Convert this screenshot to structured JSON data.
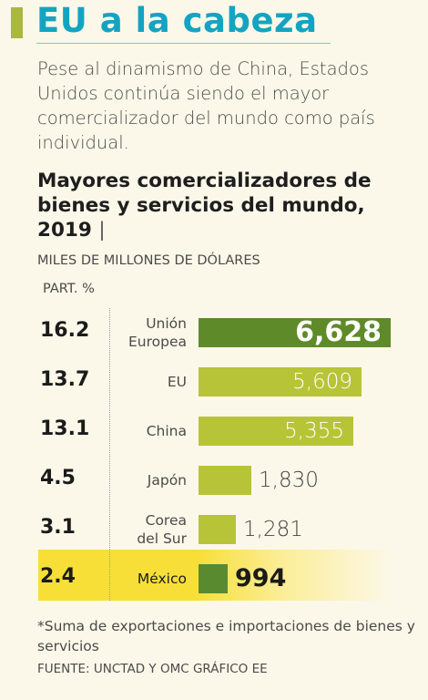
{
  "header": {
    "title": "EU a la cabeza",
    "intro": "Pese al dinamismo de China, Estados Unidos continúa siendo el mayor comercializador del mundo como país individual."
  },
  "chart_data": {
    "type": "bar",
    "orientation": "horizontal",
    "title": "Mayores comercializadores de bienes y servicios del mundo, 2019",
    "title_separator": "|",
    "units": "MILES DE MILLONES DE DÓLARES",
    "share_header": "PART. %",
    "categories": [
      "Unión Europea",
      "EU",
      "China",
      "Japón",
      "Corea del Sur",
      "México"
    ],
    "values": [
      6628,
      5609,
      5355,
      1830,
      1281,
      994
    ],
    "value_labels": [
      "6,628",
      "5,609",
      "5,355",
      "1,830",
      "1,281",
      "994"
    ],
    "shares": [
      "16.2",
      "13.7",
      "13.1",
      "4.5",
      "3.1",
      "2.4"
    ],
    "highlight": "México",
    "xlim": [
      0,
      6628
    ]
  },
  "rows": [
    {
      "share": "16.2",
      "label_lines": [
        "Unión",
        "Europea"
      ],
      "value": 6628,
      "value_label": "6,628",
      "color": "#5f8a2a",
      "style": "inside-big"
    },
    {
      "share": "13.7",
      "label_lines": [
        "EU"
      ],
      "value": 5609,
      "value_label": "5,609",
      "color": "#b8c437",
      "style": "inside"
    },
    {
      "share": "13.1",
      "label_lines": [
        "China"
      ],
      "value": 5355,
      "value_label": "5,355",
      "color": "#b8c437",
      "style": "inside"
    },
    {
      "share": "4.5",
      "label_lines": [
        "Japón"
      ],
      "value": 1830,
      "value_label": "1,830",
      "color": "#b8c437",
      "style": "outside"
    },
    {
      "share": "3.1",
      "label_lines": [
        "Corea",
        "del Sur"
      ],
      "value": 1281,
      "value_label": "1,281",
      "color": "#b8c437",
      "style": "outside"
    },
    {
      "share": "2.4",
      "label_lines": [
        "México"
      ],
      "value": 994,
      "value_label": "994",
      "color": "#5a8a30",
      "style": "outside-bold"
    }
  ],
  "colors": {
    "title": "#14a4c2",
    "accent": "#a9b93f",
    "bar_light": "#b8c437",
    "bar_dark": "#5f8a2a",
    "highlight": "#f7df38",
    "background": "#fbf8e9"
  },
  "footer": {
    "note": "*Suma de exportaciones e importaciones de bienes y servicios",
    "source": "FUENTE: UNCTAD Y OMC GRÁFICO EE"
  }
}
